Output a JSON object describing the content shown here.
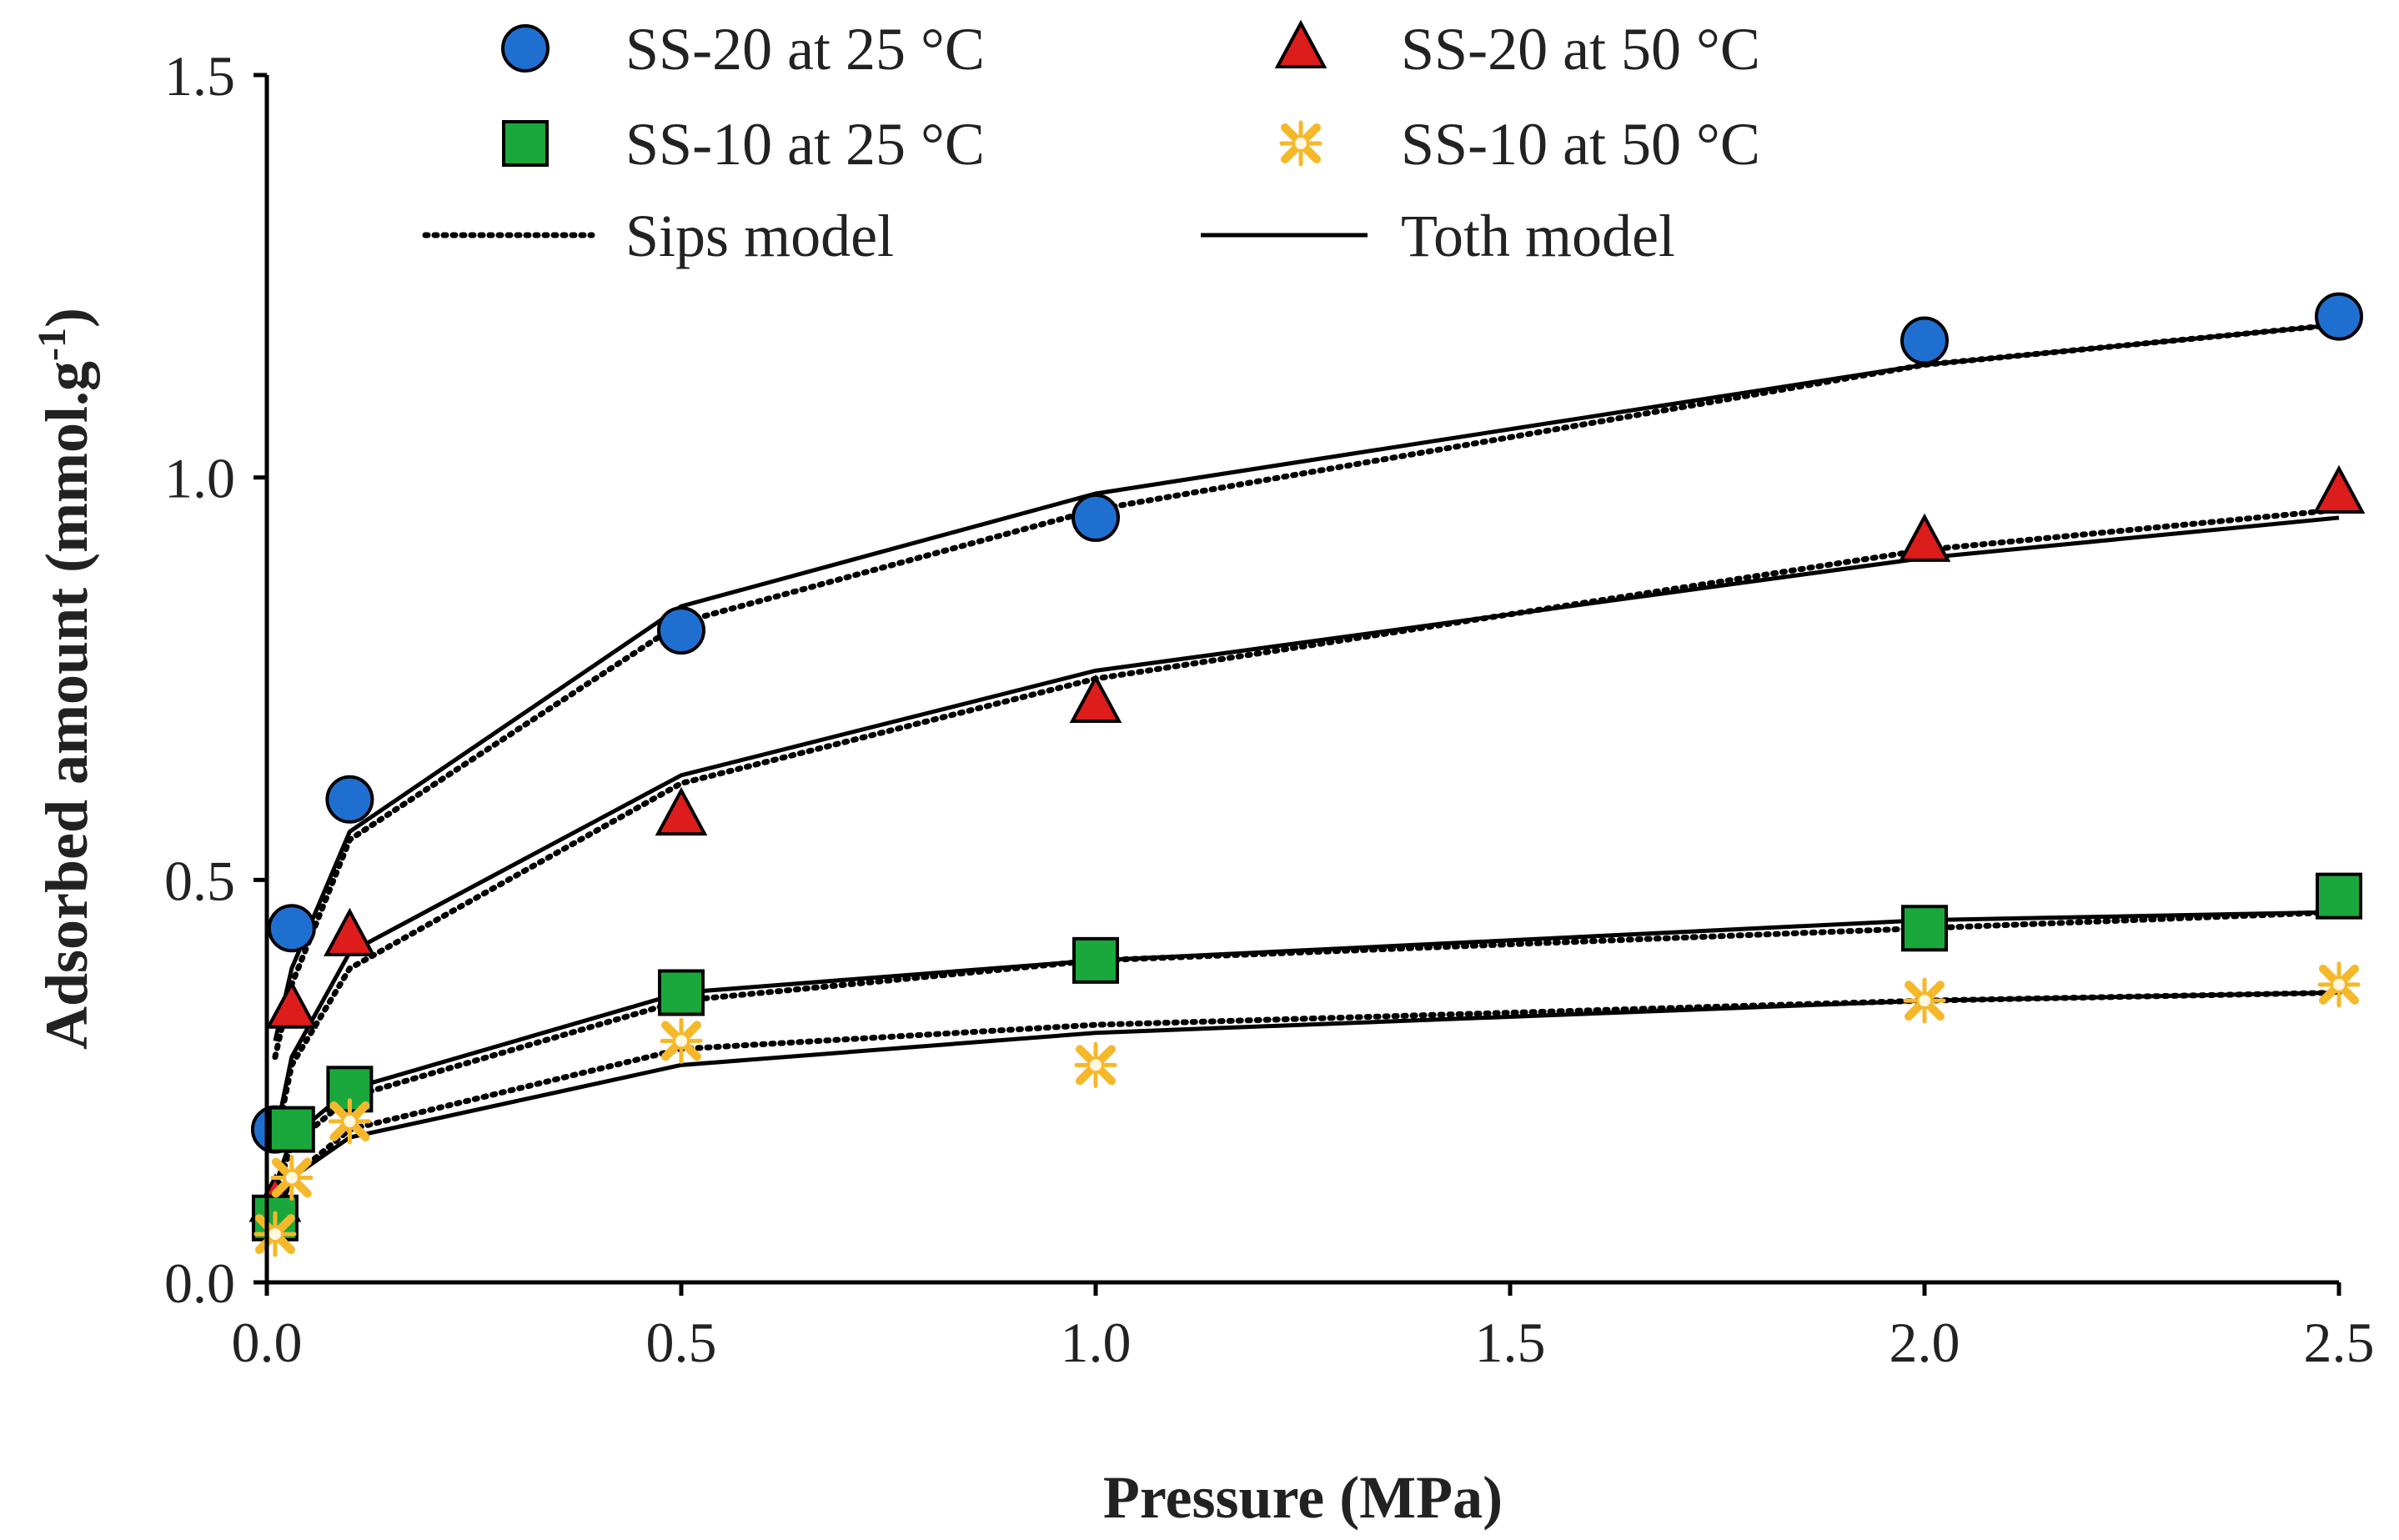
{
  "chart_data": {
    "type": "scatter",
    "xlabel": "Pressure (MPa)",
    "ylabel_main": "Adsorbed amount (mmol.g",
    "ylabel_sup": "-1",
    "ylabel_close": ")",
    "xlim": [
      0,
      2.5
    ],
    "ylim": [
      0,
      1.5
    ],
    "xticks": [
      "0.0",
      "0.5",
      "1.0",
      "1.5",
      "2.0",
      "2.5"
    ],
    "yticks": [
      "0.0",
      "0.5",
      "1.0",
      "1.5"
    ],
    "series": [
      {
        "name": "SS-20 at 25 °C",
        "marker": "circle",
        "color": "#1f6fd0",
        "points": [
          [
            0.01,
            0.19
          ],
          [
            0.03,
            0.44
          ],
          [
            0.1,
            0.6
          ],
          [
            0.5,
            0.81
          ],
          [
            1.0,
            0.95
          ],
          [
            2.0,
            1.17
          ],
          [
            2.5,
            1.2
          ]
        ],
        "sips": [
          [
            0.01,
            0.28
          ],
          [
            0.03,
            0.37
          ],
          [
            0.1,
            0.55
          ],
          [
            0.5,
            0.82
          ],
          [
            1.0,
            0.96
          ],
          [
            2.0,
            1.14
          ],
          [
            2.5,
            1.19
          ]
        ],
        "toth": [
          [
            0.01,
            0.3
          ],
          [
            0.03,
            0.39
          ],
          [
            0.1,
            0.56
          ],
          [
            0.5,
            0.84
          ],
          [
            1.0,
            0.98
          ],
          [
            2.0,
            1.14
          ],
          [
            2.5,
            1.19
          ]
        ]
      },
      {
        "name": "SS-20 at 50 °C",
        "marker": "triangle",
        "color": "#dd1c1c",
        "points": [
          [
            0.01,
            0.1
          ],
          [
            0.03,
            0.34
          ],
          [
            0.1,
            0.43
          ],
          [
            0.5,
            0.58
          ],
          [
            1.0,
            0.72
          ],
          [
            2.0,
            0.92
          ],
          [
            2.5,
            0.98
          ]
        ],
        "sips": [
          [
            0.01,
            0.17
          ],
          [
            0.03,
            0.27
          ],
          [
            0.1,
            0.39
          ],
          [
            0.5,
            0.62
          ],
          [
            1.0,
            0.75
          ],
          [
            2.0,
            0.91
          ],
          [
            2.5,
            0.96
          ]
        ],
        "toth": [
          [
            0.01,
            0.18
          ],
          [
            0.03,
            0.28
          ],
          [
            0.1,
            0.41
          ],
          [
            0.5,
            0.63
          ],
          [
            1.0,
            0.76
          ],
          [
            2.0,
            0.9
          ],
          [
            2.5,
            0.95
          ]
        ]
      },
      {
        "name": "SS-10 at 25 °C",
        "marker": "square",
        "color": "#1aa83c",
        "points": [
          [
            0.01,
            0.08
          ],
          [
            0.03,
            0.19
          ],
          [
            0.1,
            0.24
          ],
          [
            0.5,
            0.36
          ],
          [
            1.0,
            0.4
          ],
          [
            2.0,
            0.44
          ],
          [
            2.5,
            0.48
          ]
        ],
        "sips": [
          [
            0.01,
            0.11
          ],
          [
            0.03,
            0.17
          ],
          [
            0.1,
            0.23
          ],
          [
            0.5,
            0.35
          ],
          [
            1.0,
            0.4
          ],
          [
            2.0,
            0.44
          ],
          [
            2.5,
            0.46
          ]
        ],
        "toth": [
          [
            0.01,
            0.12
          ],
          [
            0.03,
            0.18
          ],
          [
            0.1,
            0.24
          ],
          [
            0.5,
            0.36
          ],
          [
            1.0,
            0.4
          ],
          [
            2.0,
            0.45
          ],
          [
            2.5,
            0.46
          ]
        ]
      },
      {
        "name": "SS-10 at 50 °C",
        "marker": "star",
        "color": "#f5b82a",
        "points": [
          [
            0.01,
            0.06
          ],
          [
            0.03,
            0.13
          ],
          [
            0.1,
            0.2
          ],
          [
            0.5,
            0.3
          ],
          [
            1.0,
            0.27
          ],
          [
            2.0,
            0.35
          ],
          [
            2.5,
            0.37
          ]
        ],
        "sips": [
          [
            0.01,
            0.08
          ],
          [
            0.03,
            0.13
          ],
          [
            0.1,
            0.19
          ],
          [
            0.5,
            0.29
          ],
          [
            1.0,
            0.32
          ],
          [
            2.0,
            0.35
          ],
          [
            2.5,
            0.36
          ]
        ],
        "toth": [
          [
            0.01,
            0.08
          ],
          [
            0.03,
            0.13
          ],
          [
            0.1,
            0.18
          ],
          [
            0.5,
            0.27
          ],
          [
            1.0,
            0.31
          ],
          [
            2.0,
            0.35
          ],
          [
            2.5,
            0.36
          ]
        ]
      }
    ],
    "legend": {
      "position": "top",
      "entries": [
        "SS-20 at 25 °C",
        "SS-20 at 50 °C",
        "SS-10 at 25 °C",
        "SS-10 at 50 °C",
        "Sips model",
        "Toth model"
      ]
    }
  }
}
